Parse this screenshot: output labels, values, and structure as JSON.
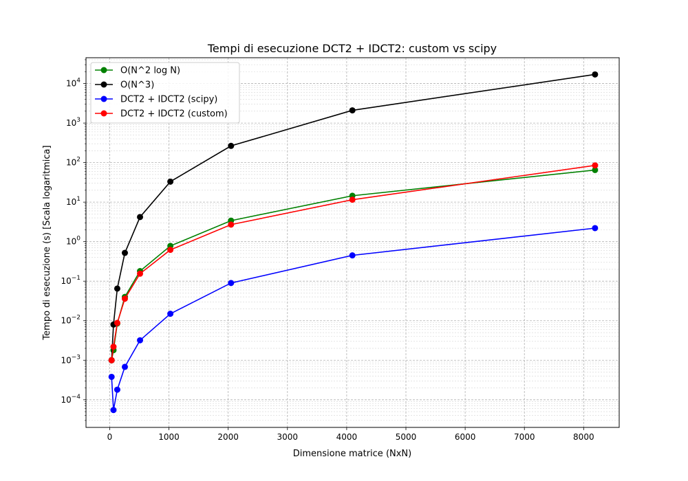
{
  "chart_data": {
    "type": "line",
    "title": "Tempi di esecuzione DCT2 + IDCT2: custom vs scipy",
    "xlabel": "Dimensione matrice (NxN)",
    "ylabel": "Tempo di esecuzione (s) [Scala logaritmica]",
    "xlim": [
      -400,
      8600
    ],
    "ylim": [
      2e-05,
      45000
    ],
    "yscale": "log",
    "grid": true,
    "grid_minor": true,
    "legend_position": "top-left",
    "x": [
      32,
      64,
      128,
      256,
      512,
      1024,
      2048,
      4096,
      8192
    ],
    "x_ticks": [
      0,
      1000,
      2000,
      3000,
      4000,
      5000,
      6000,
      7000,
      8000
    ],
    "x_tick_labels": [
      "0",
      "1000",
      "2000",
      "3000",
      "4000",
      "5000",
      "6000",
      "7000",
      "8000"
    ],
    "y_ticks": [
      0.0001,
      0.001,
      0.01,
      0.1,
      1,
      10,
      100,
      1000,
      10000
    ],
    "y_tick_labels": [
      {
        "base": "10",
        "exp": "−4"
      },
      {
        "base": "10",
        "exp": "−3"
      },
      {
        "base": "10",
        "exp": "−2"
      },
      {
        "base": "10",
        "exp": "−1"
      },
      {
        "base": "10",
        "exp": "0"
      },
      {
        "base": "10",
        "exp": "1"
      },
      {
        "base": "10",
        "exp": "2"
      },
      {
        "base": "10",
        "exp": "3"
      },
      {
        "base": "10",
        "exp": "4"
      }
    ],
    "series": [
      {
        "name": "O(N^2 log N)",
        "color": "#008000",
        "values": [
          0.001,
          0.0018,
          0.0085,
          0.04,
          0.18,
          0.78,
          3.4,
          14.5,
          65
        ]
      },
      {
        "name": "O(N^3)",
        "color": "#000000",
        "values": [
          0.001,
          0.008,
          0.065,
          0.52,
          4.2,
          33,
          265,
          2100,
          17000
        ]
      },
      {
        "name": "DCT2 + IDCT2 (scipy)",
        "color": "#0000ff",
        "values": [
          0.00038,
          5.5e-05,
          0.00018,
          0.00068,
          0.0032,
          0.015,
          0.09,
          0.45,
          2.2
        ]
      },
      {
        "name": "DCT2 + IDCT2 (custom)",
        "color": "#ff0000",
        "values": [
          0.001,
          0.0022,
          0.0088,
          0.036,
          0.155,
          0.62,
          2.7,
          11.5,
          85
        ]
      }
    ]
  }
}
